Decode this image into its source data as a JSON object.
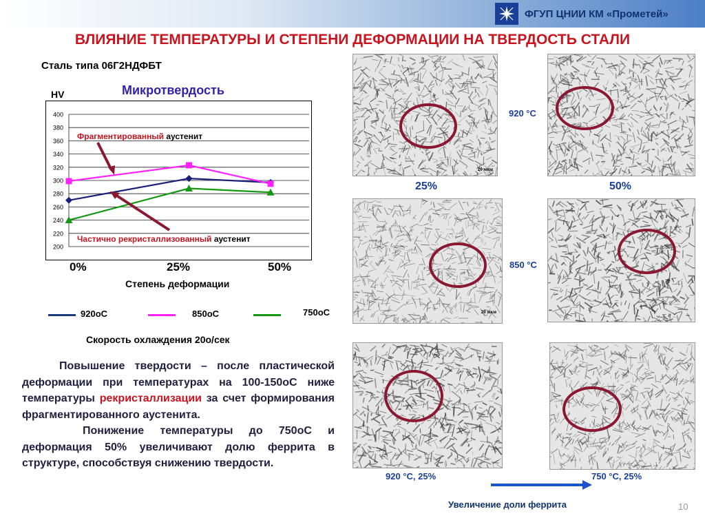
{
  "header": {
    "org": "ФГУП ЦНИИ КМ «Прометей»",
    "title": "ВЛИЯНИЕ  ТЕМПЕРАТУРЫ  И СТЕПЕНИ  ДЕФОРМАЦИИ НА ТВЕРДОСТЬ СТАЛИ"
  },
  "steel_label": "Сталь типа 06Г2НДФБТ",
  "chart_heading": "Микротвердость",
  "chart_data": {
    "type": "line",
    "title": "Микротвердость",
    "ylabel": "HV",
    "xlabel": "Степень деформации",
    "categories": [
      "0%",
      "25%",
      "50%"
    ],
    "ylim": [
      200,
      400
    ],
    "yticks": [
      200,
      220,
      240,
      260,
      280,
      300,
      320,
      340,
      360,
      380,
      400
    ],
    "grid": true,
    "series": [
      {
        "name": "920оС",
        "color": "#1a1f7a",
        "marker": "diamond",
        "values": [
          270,
          303,
          297
        ]
      },
      {
        "name": "850оС",
        "color": "#ff22ff",
        "marker": "square",
        "values": [
          299,
          323,
          295
        ]
      },
      {
        "name": "750оС",
        "color": "#119911",
        "marker": "triangle",
        "values": [
          240,
          288,
          282
        ]
      }
    ],
    "annotations": [
      {
        "prefix": "Фрагментированный",
        "suffix": " аустенит"
      },
      {
        "prefix": "Частично рекристаллизованный",
        "suffix": " аустенит"
      }
    ]
  },
  "legend": [
    {
      "label": "920оС",
      "color": "#1a3a7a"
    },
    {
      "label": "850оС",
      "color": "#ff22ff"
    },
    {
      "label": "750оС",
      "color": "#119911"
    }
  ],
  "cooling_rate": "Скорость охлаждения 20о/сек",
  "description": {
    "p1_a": "Повышение твердости – после пластической деформации при температурах на 100-150оС ниже температуры ",
    "p1_red": "рекристаллизации",
    "p1_b": " за счет формирования фрагментированного аустенита.",
    "p2": "Понижение температуры до 750оС и деформация 50% увеличивают долю феррита в структуре, способствуя снижению твердости."
  },
  "micrographs": {
    "scale_bar": "20 мкм",
    "row1_temp": "920 °C",
    "row2_temp": "850 °C",
    "col1": "25%",
    "col2": "50%",
    "bottom_left": "920 °C, 25%",
    "bottom_right": "750 °C, 25%",
    "arrow_caption": "Увеличение доли феррита"
  },
  "page_number": "10"
}
